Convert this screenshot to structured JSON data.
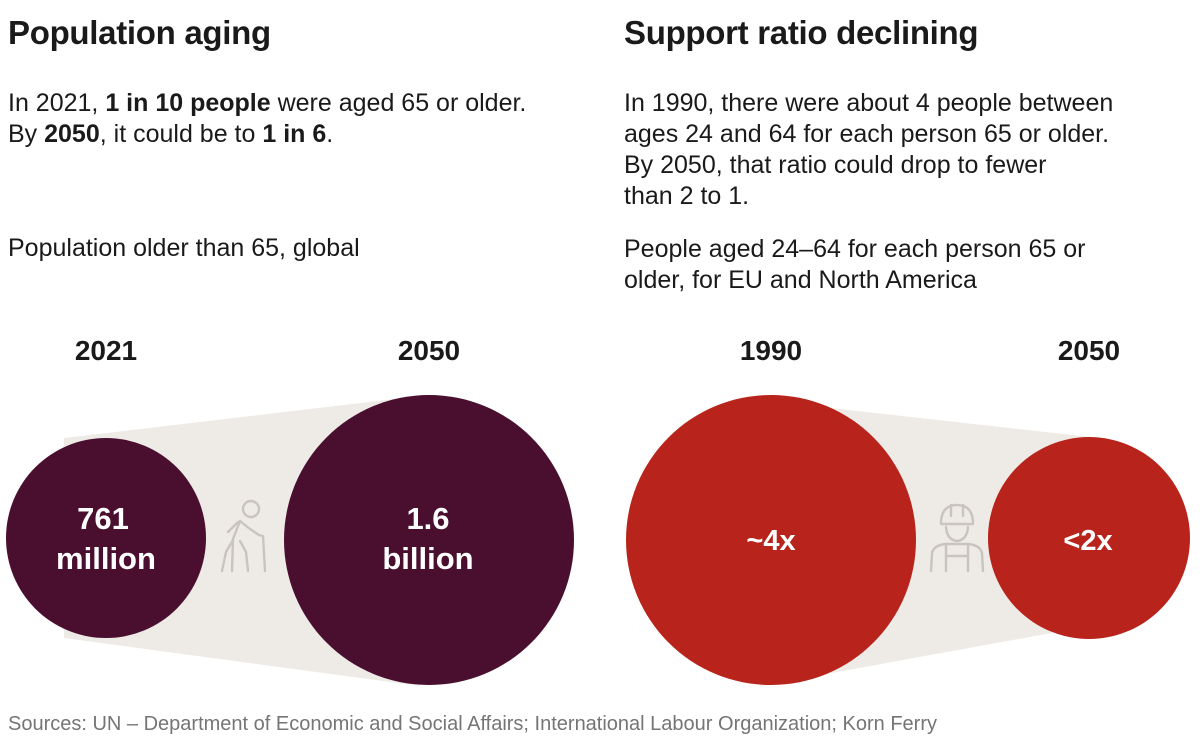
{
  "left_panel": {
    "title": "Population aging",
    "description_line1": {
      "pre": "In 2021, ",
      "b1": "1 in 10 people",
      "post": " were aged 65 or older."
    },
    "description_line2": {
      "pre": "By ",
      "b1": "2050",
      "mid": ", it could be to ",
      "b2": "1 in 6",
      "post": "."
    },
    "subtitle": "Population older than 65, global",
    "icon": "elderly-person-with-cane-icon"
  },
  "right_panel": {
    "title": "Support ratio declining",
    "description_lines": [
      "In 1990, there were about 4 people between",
      "ages 24 and 64 for each person 65 or older.",
      "By 2050, that ratio could drop to fewer",
      "than 2 to 1."
    ],
    "subtitle_lines": [
      "People aged 24–64 for each person 65 or",
      "older, for EU and North America"
    ],
    "icon": "worker-hard-hat-icon"
  },
  "chart_data": [
    {
      "type": "proportional-circle",
      "title": "Population aging",
      "subtitle": "Population older than 65, global",
      "categories": [
        "2021",
        "2050"
      ],
      "values": [
        761000000,
        1600000000
      ],
      "value_labels": [
        [
          "761",
          "million"
        ],
        [
          "1.6",
          "billion"
        ]
      ],
      "color": "#4a0f2f"
    },
    {
      "type": "proportional-circle",
      "title": "Support ratio declining",
      "subtitle": "People aged 24–64 for each person 65 or older, for EU and North America",
      "categories": [
        "1990",
        "2050"
      ],
      "values": [
        4,
        2
      ],
      "value_labels": [
        [
          "~4x"
        ],
        [
          "<2x"
        ]
      ],
      "color": "#b8241c"
    }
  ],
  "colors": {
    "burgundy": "#4a0f2f",
    "red": "#b8241c",
    "connector": "#eeebe7",
    "icon": "#c9c4bf",
    "source_text": "#757575"
  },
  "source": "Sources: UN – Department of Economic and Social Affairs; International Labour Organization; Korn Ferry"
}
